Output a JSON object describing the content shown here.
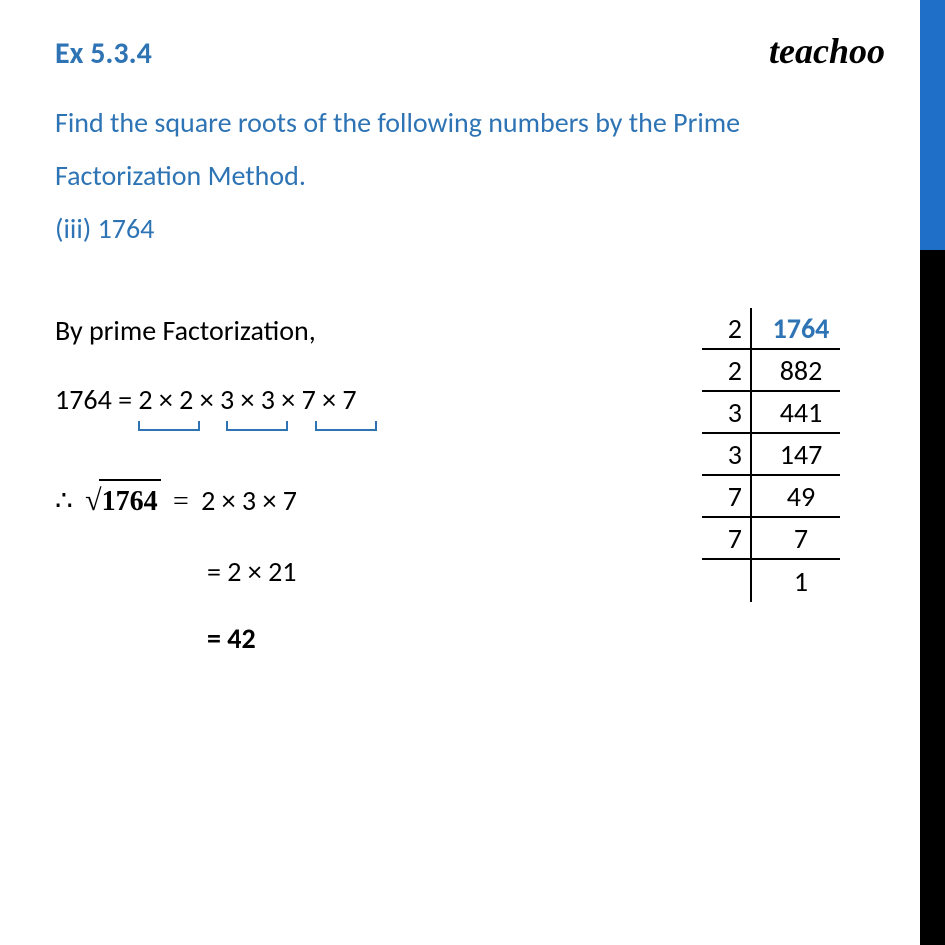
{
  "logo": {
    "text": "teachoo",
    "fontsize": 36,
    "color": "#000000"
  },
  "side_band": {
    "blue_color": "#1f6fc8",
    "black_color": "#000000",
    "blue_height": 250,
    "black_height": 695
  },
  "exercise": {
    "label": "Ex 5.3.4",
    "label_color": "#2e74b5",
    "label_fontsize": 30,
    "question": "Find the square roots of the following numbers by the Prime Factorization Method.",
    "subpart": "(iii) 1764",
    "question_color": "#2e74b5",
    "question_fontsize": 28
  },
  "working": {
    "fontsize": 28,
    "intro": "By prime Factorization,",
    "factor_lhs": "1764 = ",
    "factorization": "2 × 2 × 3 × 3 × 7 × 7",
    "bracket_color": "#2e74b5",
    "sqrt_prefix": "∴",
    "sqrt_radicand": "1764",
    "sqrt_rhs": "2 × 3 × 7",
    "step2": "= 2 × 21",
    "final_eq": "=  42"
  },
  "ladder": {
    "fontsize": 28,
    "highlight_color": "#2e74b5",
    "rows": [
      {
        "divisor": "2",
        "quotient": "1764",
        "highlight": true
      },
      {
        "divisor": "2",
        "quotient": "882",
        "highlight": false
      },
      {
        "divisor": "3",
        "quotient": "441",
        "highlight": false
      },
      {
        "divisor": "3",
        "quotient": "147",
        "highlight": false
      },
      {
        "divisor": "7",
        "quotient": "49",
        "highlight": false
      },
      {
        "divisor": "7",
        "quotient": "7",
        "highlight": false
      },
      {
        "divisor": "",
        "quotient": "1",
        "highlight": false
      }
    ]
  }
}
